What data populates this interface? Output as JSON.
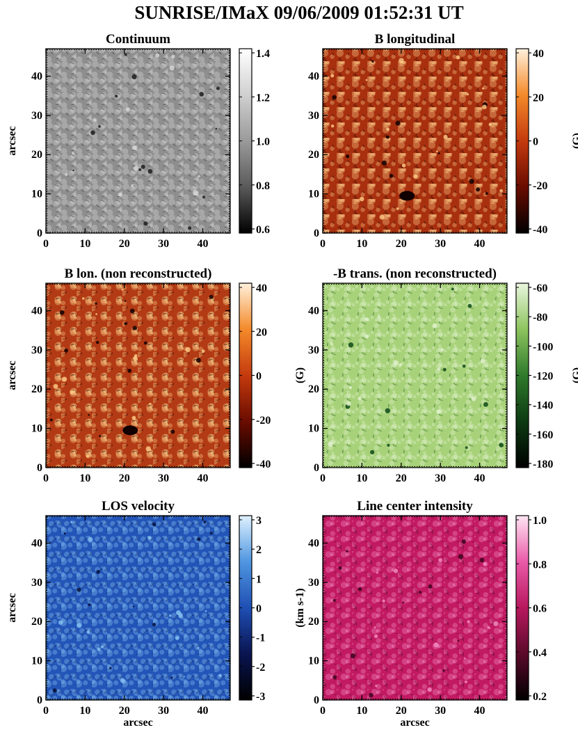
{
  "figure": {
    "title": "SUNRISE/IMaX 09/06/2009 01:52:31 UT",
    "axis_unit_label": "arcsec",
    "axis_ticks": [
      "0",
      "10",
      "20",
      "30",
      "40"
    ],
    "axis_range": [
      0,
      47
    ]
  },
  "panels": [
    {
      "title": "Continuum",
      "ylabel": "arcsec",
      "xlabel": "",
      "cbar_label": "",
      "cbar_ticks": [
        "1.4",
        "1.2",
        "1.0",
        "0.8",
        "0.6"
      ],
      "colormap": [
        "#000000",
        "#5a5a5a",
        "#9a9a9a",
        "#d0d0d0",
        "#ffffff"
      ],
      "base_color": "#8e8e8e",
      "dark_color": "#1c1c1c",
      "bright_color": "#d8d8d8"
    },
    {
      "title": "B longitudinal",
      "ylabel": "",
      "xlabel": "",
      "cbar_label": "(G)",
      "cbar_ticks": [
        "40",
        "20",
        "0",
        "-20",
        "-40"
      ],
      "colormap": [
        "#000000",
        "#6a0c00",
        "#c43a0e",
        "#f48a2a",
        "#fff1dc"
      ],
      "base_color": "#a8300f",
      "dark_color": "#120000",
      "bright_color": "#ffcf8a"
    },
    {
      "title": "B lon. (non reconstructed)",
      "ylabel": "arcsec",
      "xlabel": "",
      "cbar_label": "(G)",
      "cbar_ticks": [
        "40",
        "20",
        "0",
        "-20",
        "-40"
      ],
      "colormap": [
        "#000000",
        "#6a0c00",
        "#c43a0e",
        "#f48a2a",
        "#fff1dc"
      ],
      "base_color": "#b23a14",
      "dark_color": "#120000",
      "bright_color": "#ffcf8a"
    },
    {
      "title": "-B trans. (non reconstructed)",
      "ylabel": "",
      "xlabel": "",
      "cbar_label": "(G)",
      "cbar_ticks": [
        "-60",
        "-80",
        "-100",
        "-120",
        "-140",
        "-160",
        "-180"
      ],
      "colormap": [
        "#000000",
        "#0c3a12",
        "#2f7a2c",
        "#8dc45e",
        "#eaf6de"
      ],
      "base_color": "#a8d27a",
      "dark_color": "#0f4a18",
      "bright_color": "#e4f3d2"
    },
    {
      "title": "LOS velocity",
      "ylabel": "arcsec",
      "xlabel": "arcsec",
      "cbar_label": "(km s-1)",
      "cbar_ticks": [
        "3",
        "2",
        "1",
        "0",
        "-1",
        "-2",
        "-3"
      ],
      "colormap": [
        "#000000",
        "#0a1450",
        "#1f4fb4",
        "#4f96e0",
        "#dff2ff"
      ],
      "base_color": "#2355b8",
      "dark_color": "#05103a",
      "bright_color": "#8ac6f4"
    },
    {
      "title": "Line center intensity",
      "ylabel": "",
      "xlabel": "arcsec",
      "cbar_label": "",
      "cbar_ticks": [
        "1.0",
        "0.8",
        "0.6",
        "0.4",
        "0.2"
      ],
      "colormap": [
        "#000000",
        "#5a0a2a",
        "#b8185e",
        "#ea5aa8",
        "#ffe6f4"
      ],
      "base_color": "#c21a62",
      "dark_color": "#3e0620",
      "bright_color": "#f290c6"
    }
  ]
}
